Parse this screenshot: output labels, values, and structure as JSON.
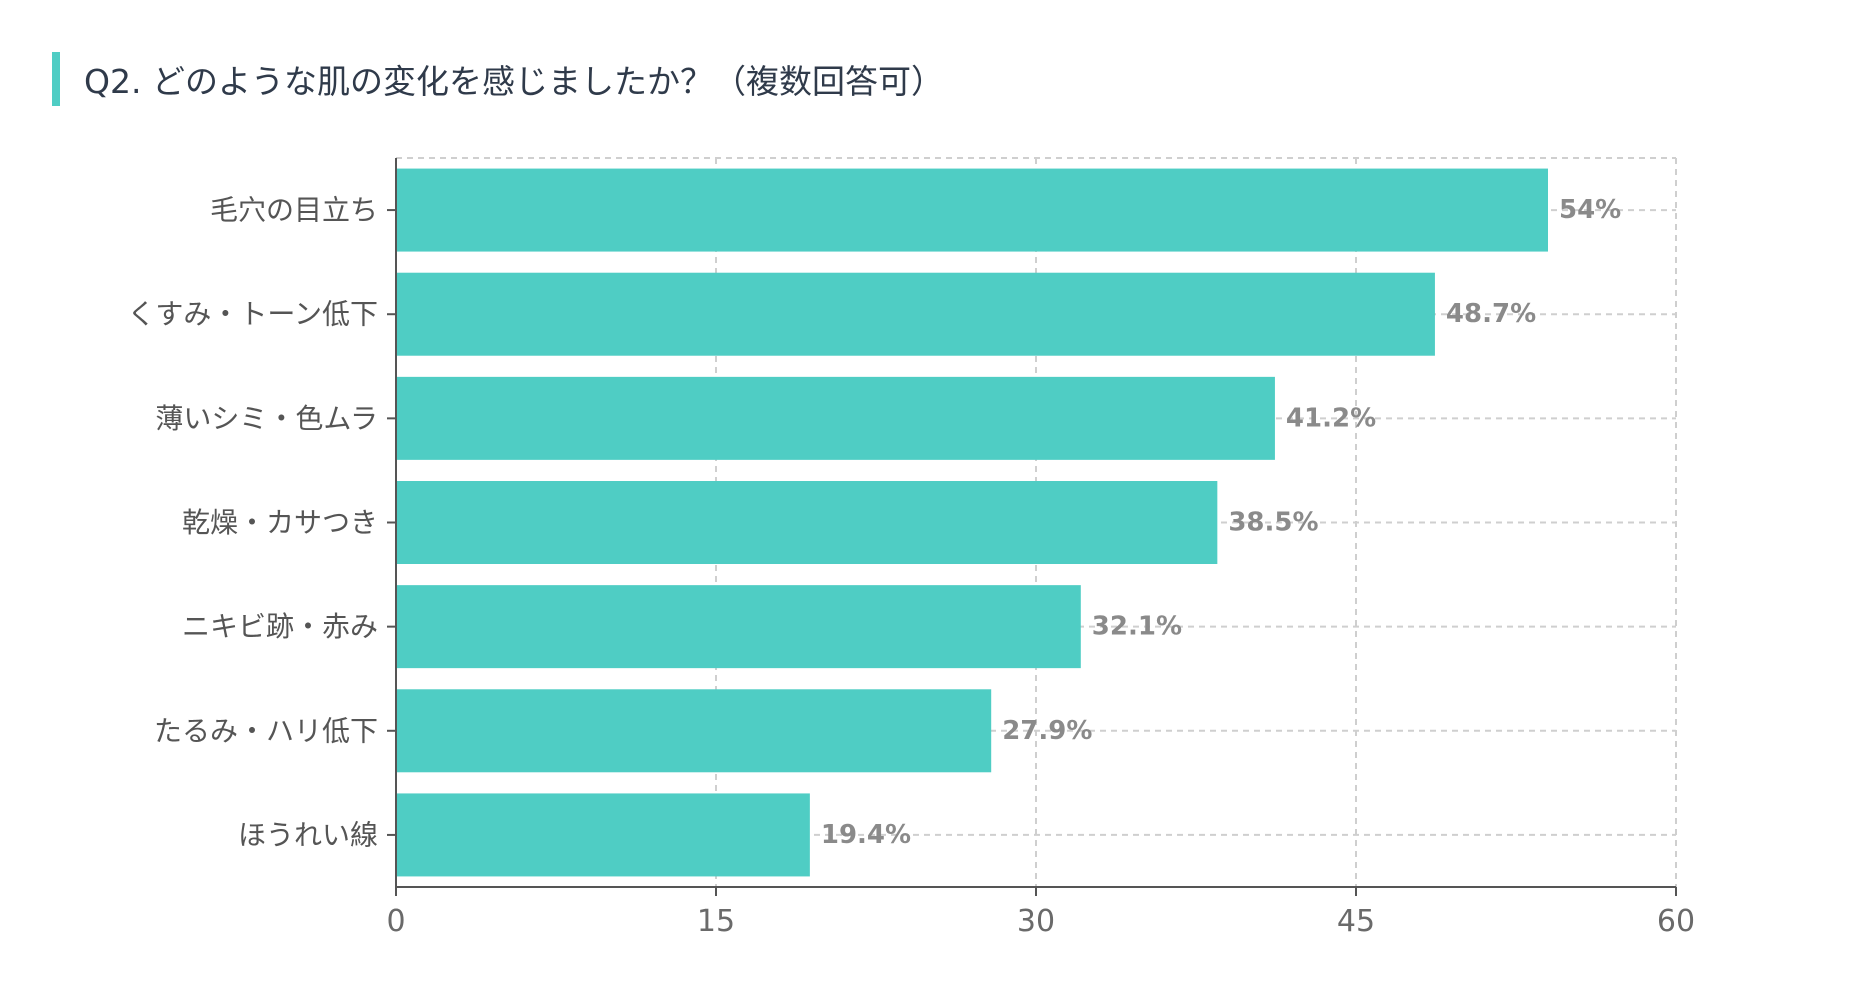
{
  "title": "Q2. どのような肌の変化を感じましたか？（複数回答可）",
  "colors": {
    "accent": "#4fcdc4",
    "bar": "#4fcdc4",
    "grid": "#cfcfcf",
    "axis": "#555555"
  },
  "chart_data": {
    "type": "bar",
    "orientation": "horizontal",
    "title": "Q2. どのような肌の変化を感じましたか？（複数回答可）",
    "categories": [
      "毛穴の目立ち",
      "くすみ・トーン低下",
      "薄いシミ・色ムラ",
      "乾燥・カサつき",
      "ニキビ跡・赤み",
      "たるみ・ハリ低下",
      "ほうれい線"
    ],
    "values": [
      54,
      48.7,
      41.2,
      38.5,
      32.1,
      27.9,
      19.4
    ],
    "value_labels": [
      "54%",
      "48.7%",
      "41.2%",
      "38.5%",
      "32.1%",
      "27.9%",
      "19.4%"
    ],
    "xlim": [
      0,
      60
    ],
    "xticks": [
      0,
      15,
      30,
      45,
      60
    ],
    "xlabel": "",
    "ylabel": "",
    "grid": true,
    "grid_style": "dashed"
  }
}
